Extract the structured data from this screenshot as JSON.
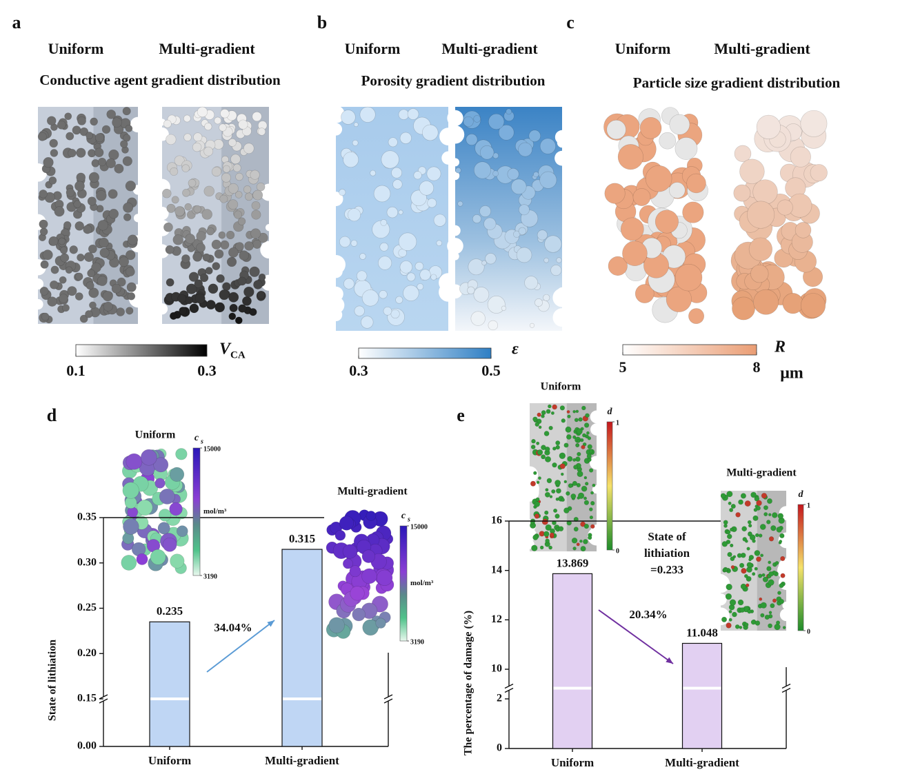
{
  "panels": [
    {
      "letter": "a",
      "columns": [
        "Uniform",
        "Multi-gradient"
      ],
      "subtitle": "Conductive agent gradient distribution",
      "colorbar": {
        "symbol": "V",
        "subscript": "CA",
        "ticks": [
          0.1,
          0.3
        ]
      }
    },
    {
      "letter": "b",
      "columns": [
        "Uniform",
        "Multi-gradient"
      ],
      "subtitle": "Porosity gradient distribution",
      "colorbar": {
        "symbol": "ε",
        "ticks": [
          0.3,
          0.5
        ]
      }
    },
    {
      "letter": "c",
      "columns": [
        "Uniform",
        "Multi-gradient"
      ],
      "subtitle": "Particle size gradient distribution",
      "colorbar": {
        "symbol": "R",
        "unit": "μm",
        "ticks": [
          5,
          8
        ]
      }
    }
  ],
  "chart_data": [
    {
      "type": "bar",
      "letter": "d",
      "categories": [
        "Uniform",
        "Multi-gradient"
      ],
      "values": [
        0.235,
        0.315
      ],
      "color": "#bfd6f4",
      "ylabel": "State of lithiation",
      "ylim": [
        0,
        0.35
      ],
      "yticks": [
        {
          "value": 0,
          "label": "0.00"
        },
        0.15,
        {
          "value": 0.2,
          "label": "0.20"
        },
        0.25,
        {
          "value": 0.3,
          "label": "0.30"
        },
        0.35
      ],
      "ybreak": [
        0.15,
        0.15
      ],
      "annotation": "34.04%",
      "annotation_color": "#5b9bd5",
      "insets": [
        {
          "title": "Uniform",
          "cbar_symbol": "c",
          "cbar_subscript": "s",
          "cbar_ticks": [
            15000,
            3190
          ],
          "cbar_unit": "mol/m³"
        },
        {
          "title": "Multi-gradient",
          "cbar_symbol": "c",
          "cbar_subscript": "s",
          "cbar_ticks": [
            15000,
            3190
          ],
          "cbar_unit": "mol/m³"
        }
      ]
    },
    {
      "type": "bar",
      "letter": "e",
      "categories": [
        "Uniform",
        "Multi-gradient"
      ],
      "values": [
        13.869,
        11.048
      ],
      "color": "#e2d0f2",
      "ylabel": "The percentage of damage (%)",
      "ylim": [
        0,
        16
      ],
      "yticks": [
        0,
        2,
        10,
        12,
        14,
        16
      ],
      "ybreak": [
        2,
        10
      ],
      "annotation": "20.34%",
      "annotation_color": "#7030a0",
      "note": [
        "State of",
        "lithiation",
        "=0.233"
      ],
      "insets": [
        {
          "title": "Uniform",
          "cbar_symbol": "d",
          "cbar_ticks": [
            1,
            0
          ]
        },
        {
          "title": "Multi-gradient",
          "cbar_symbol": "d",
          "cbar_ticks": [
            1,
            0
          ]
        }
      ]
    }
  ]
}
